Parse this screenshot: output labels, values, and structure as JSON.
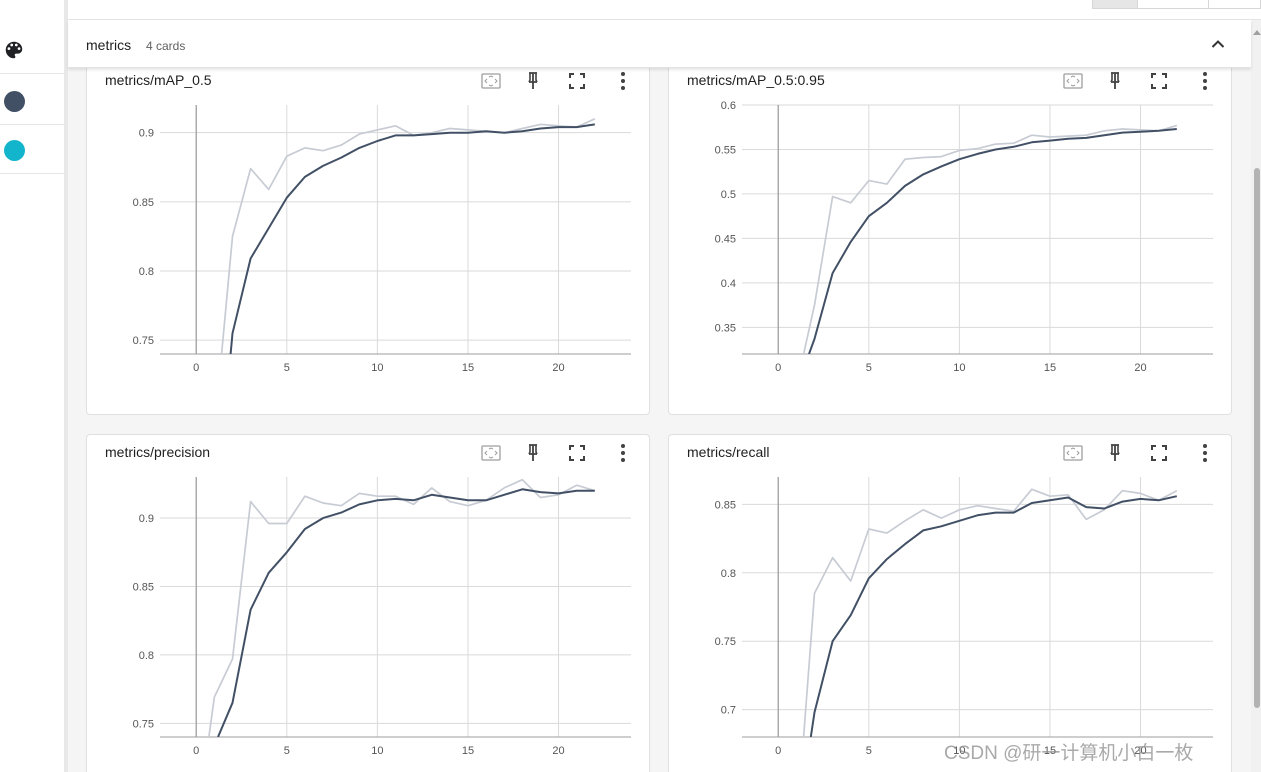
{
  "section": {
    "title": "metrics",
    "count": "4 cards"
  },
  "sidebar": {
    "items": [
      {
        "name": "palette-icon",
        "color": "#202124"
      },
      {
        "name": "run-color-dot-1",
        "color": "#425066"
      },
      {
        "name": "run-color-dot-2",
        "color": "#12b5cb"
      }
    ]
  },
  "colors": {
    "raw": "#c7cbd3",
    "smoothed": "#425066",
    "grid": "#dadada",
    "axis": "#9e9e9e"
  },
  "watermark": "CSDN @研一计算机小白一枚",
  "cards": [
    {
      "title": "metrics/mAP_0.5",
      "chart_data": {
        "type": "line",
        "xlim": [
          -2,
          24
        ],
        "ylim": [
          0.74,
          0.92
        ],
        "xticks": [
          0,
          5,
          10,
          15,
          20
        ],
        "xtick_labels": [
          "0",
          "5",
          "10",
          "15",
          "20"
        ],
        "yticks": [
          0.75,
          0.8,
          0.85,
          0.9
        ],
        "ytick_labels": [
          "0.75",
          "0.8",
          "0.85",
          "0.9"
        ],
        "series": [
          {
            "role": "raw",
            "x": [
              1.4,
              2,
              3,
              4,
              5,
              6,
              7,
              8,
              9,
              10,
              11,
              12,
              13,
              14,
              15,
              16,
              17,
              18,
              19,
              20,
              21,
              22
            ],
            "y": [
              0.74,
              0.825,
              0.874,
              0.859,
              0.883,
              0.889,
              0.887,
              0.891,
              0.899,
              0.902,
              0.905,
              0.898,
              0.9,
              0.903,
              0.902,
              0.901,
              0.9,
              0.903,
              0.906,
              0.905,
              0.904,
              0.91
            ]
          },
          {
            "role": "smoothed",
            "x": [
              1.9,
              2,
              3,
              4,
              5,
              6,
              7,
              8,
              9,
              10,
              11,
              12,
              13,
              14,
              15,
              16,
              17,
              18,
              19,
              20,
              21,
              22
            ],
            "y": [
              0.74,
              0.755,
              0.809,
              0.831,
              0.853,
              0.868,
              0.876,
              0.882,
              0.889,
              0.894,
              0.898,
              0.898,
              0.899,
              0.9,
              0.9,
              0.901,
              0.9,
              0.901,
              0.903,
              0.904,
              0.904,
              0.906
            ]
          }
        ]
      }
    },
    {
      "title": "metrics/mAP_0.5:0.95",
      "chart_data": {
        "type": "line",
        "xlim": [
          -2,
          24
        ],
        "ylim": [
          0.32,
          0.6
        ],
        "xticks": [
          0,
          5,
          10,
          15,
          20
        ],
        "xtick_labels": [
          "0",
          "5",
          "10",
          "15",
          "20"
        ],
        "yticks": [
          0.35,
          0.4,
          0.45,
          0.5,
          0.55,
          0.6
        ],
        "ytick_labels": [
          "0.35",
          "0.4",
          "0.45",
          "0.5",
          "0.55",
          "0.6"
        ],
        "series": [
          {
            "role": "raw",
            "x": [
              1.4,
              2,
              3,
              4,
              5,
              6,
              7,
              8,
              9,
              10,
              11,
              12,
              13,
              14,
              15,
              16,
              17,
              18,
              19,
              20,
              21,
              22
            ],
            "y": [
              0.32,
              0.375,
              0.497,
              0.49,
              0.515,
              0.511,
              0.539,
              0.541,
              0.542,
              0.549,
              0.551,
              0.556,
              0.557,
              0.566,
              0.564,
              0.565,
              0.566,
              0.571,
              0.573,
              0.572,
              0.571,
              0.577
            ]
          },
          {
            "role": "smoothed",
            "x": [
              1.7,
              2,
              3,
              4,
              5,
              6,
              7,
              8,
              9,
              10,
              11,
              12,
              13,
              14,
              15,
              16,
              17,
              18,
              19,
              20,
              21,
              22
            ],
            "y": [
              0.32,
              0.337,
              0.411,
              0.446,
              0.475,
              0.49,
              0.509,
              0.522,
              0.531,
              0.539,
              0.545,
              0.55,
              0.553,
              0.558,
              0.56,
              0.562,
              0.563,
              0.566,
              0.569,
              0.57,
              0.571,
              0.573
            ]
          }
        ]
      }
    },
    {
      "title": "metrics/precision",
      "chart_data": {
        "type": "line",
        "xlim": [
          -2,
          24
        ],
        "ylim": [
          0.74,
          0.93
        ],
        "xticks": [
          0,
          5,
          10,
          15,
          20
        ],
        "xtick_labels": [
          "0",
          "5",
          "10",
          "15",
          "20"
        ],
        "yticks": [
          0.75,
          0.8,
          0.85,
          0.9
        ],
        "ytick_labels": [
          "0.75",
          "0.8",
          "0.85",
          "0.9"
        ],
        "series": [
          {
            "role": "raw",
            "x": [
              0.7,
              1,
              2,
              3,
              4,
              5,
              6,
              7,
              8,
              9,
              10,
              11,
              12,
              13,
              14,
              15,
              16,
              17,
              18,
              19,
              20,
              21,
              22
            ],
            "y": [
              0.74,
              0.769,
              0.797,
              0.912,
              0.896,
              0.896,
              0.916,
              0.911,
              0.909,
              0.918,
              0.916,
              0.916,
              0.91,
              0.922,
              0.912,
              0.909,
              0.913,
              0.922,
              0.928,
              0.915,
              0.917,
              0.924,
              0.92
            ]
          },
          {
            "role": "smoothed",
            "x": [
              1.2,
              2,
              3,
              4,
              5,
              6,
              7,
              8,
              9,
              10,
              11,
              12,
              13,
              14,
              15,
              16,
              17,
              18,
              19,
              20,
              21,
              22
            ],
            "y": [
              0.74,
              0.765,
              0.833,
              0.86,
              0.875,
              0.892,
              0.9,
              0.904,
              0.91,
              0.913,
              0.914,
              0.913,
              0.917,
              0.915,
              0.913,
              0.913,
              0.917,
              0.921,
              0.919,
              0.918,
              0.92,
              0.92
            ]
          }
        ]
      }
    },
    {
      "title": "metrics/recall",
      "chart_data": {
        "type": "line",
        "xlim": [
          -2,
          24
        ],
        "ylim": [
          0.68,
          0.87
        ],
        "xticks": [
          0,
          5,
          10,
          15,
          20
        ],
        "xtick_labels": [
          "0",
          "5",
          "10",
          "15",
          "20"
        ],
        "yticks": [
          0.7,
          0.75,
          0.8,
          0.85
        ],
        "ytick_labels": [
          "0.7",
          "0.75",
          "0.8",
          "0.85"
        ],
        "series": [
          {
            "role": "raw",
            "x": [
              1.4,
              2,
              3,
              4,
              5,
              6,
              7,
              8,
              9,
              10,
              11,
              12,
              13,
              14,
              15,
              16,
              17,
              18,
              19,
              20,
              21,
              22
            ],
            "y": [
              0.68,
              0.785,
              0.811,
              0.794,
              0.832,
              0.829,
              0.838,
              0.846,
              0.84,
              0.846,
              0.849,
              0.847,
              0.845,
              0.861,
              0.856,
              0.857,
              0.839,
              0.846,
              0.86,
              0.858,
              0.853,
              0.86
            ]
          },
          {
            "role": "smoothed",
            "x": [
              1.8,
              2,
              3,
              4,
              5,
              6,
              7,
              8,
              9,
              10,
              11,
              12,
              13,
              14,
              15,
              16,
              17,
              18,
              19,
              20,
              21,
              22
            ],
            "y": [
              0.68,
              0.698,
              0.75,
              0.769,
              0.796,
              0.81,
              0.821,
              0.831,
              0.834,
              0.838,
              0.842,
              0.844,
              0.844,
              0.851,
              0.853,
              0.855,
              0.848,
              0.847,
              0.852,
              0.854,
              0.853,
              0.856
            ]
          }
        ]
      }
    }
  ]
}
